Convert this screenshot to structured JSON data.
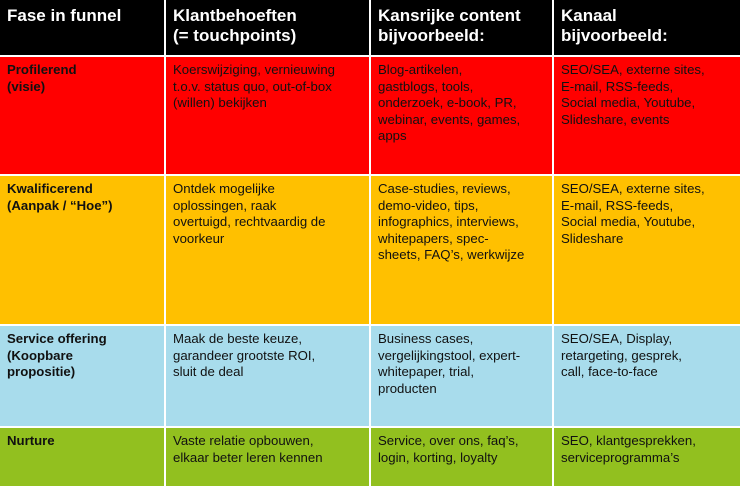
{
  "headers": [
    "Fase in funnel",
    "Klantbehoeften\n(= touchpoints)",
    "Kansrijke content\nbijvoorbeeld:",
    "Kanaal\nbijvoorbeeld:"
  ],
  "rows": [
    {
      "color": "#ff0000",
      "phase": "Profilerend\n(visie)",
      "needs": "Koerswijziging, vernieuwing\nt.o.v. status quo, out-of-box\n(willen) bekijken",
      "content": "Blog-artikelen,\ngastblogs, tools,\nonderzoek, e-book, PR,\nwebinar, events, games,\napps",
      "channel": "SEO/SEA, externe sites,\nE-mail, RSS-feeds,\nSocial media, Youtube,\nSlideshare, events"
    },
    {
      "color": "#ffc000",
      "phase": "Kwalificerend\n(Aanpak / “Hoe”)",
      "needs": "Ontdek mogelijke\noplossingen, raak\novertuigd, rechtvaardig de\nvoorkeur",
      "content": "Case-studies, reviews,\ndemo-video, tips,\ninfographics, interviews,\nwhitepapers, spec-\nsheets, FAQ’s, werkwijze",
      "channel": "SEO/SEA, externe sites,\nE-mail, RSS-feeds,\nSocial media, Youtube,\nSlideshare"
    },
    {
      "color": "#a8dcec",
      "phase": "Service offering\n(Koopbare\npropositie)",
      "needs": "Maak de beste keuze,\ngarandeer grootste ROI,\nsluit de deal",
      "content": "Business cases,\nvergelijkingstool, expert-\nwhitepaper, trial,\nproducten",
      "channel": "SEO/SEA, Display,\nretargeting, gesprek,\ncall, face-to-face"
    },
    {
      "color": "#92c01f",
      "phase": "Nurture",
      "needs": "Vaste relatie opbouwen,\nelkaar beter leren kennen",
      "content": "Service, over ons, faq’s,\nlogin, korting, loyalty",
      "channel": "SEO, klantgesprekken,\nserviceprogramma’s"
    }
  ]
}
